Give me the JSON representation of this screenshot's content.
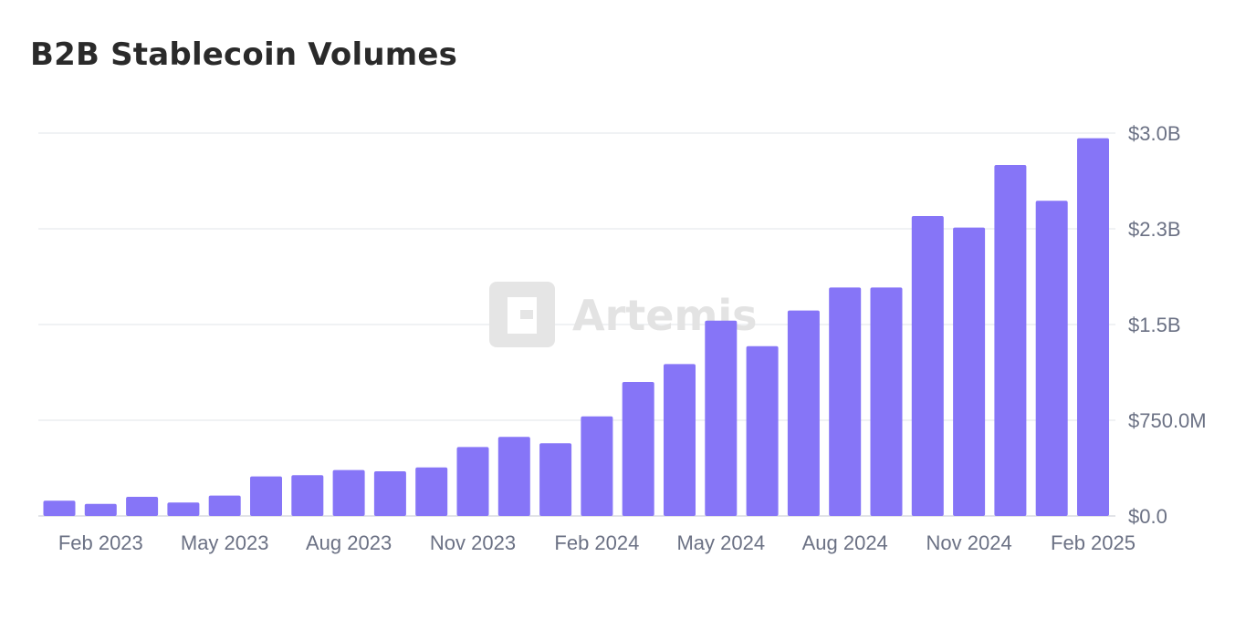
{
  "chart_data": {
    "type": "bar",
    "title": "B2B Stablecoin Volumes",
    "watermark": "Artemis",
    "bar_color": "#8675f7",
    "grid": true,
    "ylim": [
      0,
      3000000000
    ],
    "y_ticks": [
      {
        "value": 0,
        "label": "$0.0"
      },
      {
        "value": 750000000,
        "label": "$750.0M"
      },
      {
        "value": 1500000000,
        "label": "$1.5B"
      },
      {
        "value": 2250000000,
        "label": "$2.3B"
      },
      {
        "value": 3000000000,
        "label": "$3.0B"
      }
    ],
    "x_tick_labels": [
      {
        "index": 1,
        "label": "Feb 2023"
      },
      {
        "index": 4,
        "label": "May 2023"
      },
      {
        "index": 7,
        "label": "Aug 2023"
      },
      {
        "index": 10,
        "label": "Nov 2023"
      },
      {
        "index": 13,
        "label": "Feb 2024"
      },
      {
        "index": 16,
        "label": "May 2024"
      },
      {
        "index": 19,
        "label": "Aug 2024"
      },
      {
        "index": 22,
        "label": "Nov 2024"
      },
      {
        "index": 25,
        "label": "Feb 2025"
      }
    ],
    "categories": [
      "Jan 2023",
      "Feb 2023",
      "Mar 2023",
      "Apr 2023",
      "May 2023",
      "Jun 2023",
      "Jul 2023",
      "Aug 2023",
      "Sep 2023",
      "Oct 2023",
      "Nov 2023",
      "Dec 2023",
      "Jan 2024",
      "Feb 2024",
      "Mar 2024",
      "Apr 2024",
      "May 2024",
      "Jun 2024",
      "Jul 2024",
      "Aug 2024",
      "Sep 2024",
      "Oct 2024",
      "Nov 2024",
      "Dec 2024",
      "Jan 2025",
      "Feb 2025"
    ],
    "values": [
      120000000,
      95000000,
      150000000,
      105000000,
      160000000,
      310000000,
      320000000,
      360000000,
      350000000,
      380000000,
      540000000,
      620000000,
      570000000,
      780000000,
      1050000000,
      1190000000,
      1530000000,
      1330000000,
      1610000000,
      1790000000,
      1790000000,
      2350000000,
      2260000000,
      2750000000,
      2470000000,
      2960000000
    ]
  }
}
